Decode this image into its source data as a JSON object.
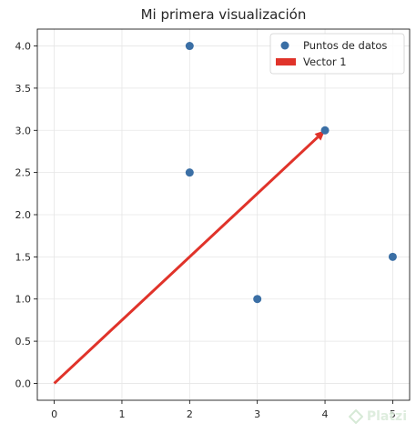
{
  "chart_data": {
    "type": "scatter",
    "title": "Mi primera visualización",
    "xlabel": "",
    "ylabel": "",
    "xlim": [
      -0.25,
      5.25
    ],
    "ylim": [
      -0.2,
      4.2
    ],
    "xticks": [
      0,
      1,
      2,
      3,
      4,
      5
    ],
    "yticks": [
      0.0,
      0.5,
      1.0,
      1.5,
      2.0,
      2.5,
      3.0,
      3.5,
      4.0
    ],
    "grid": true,
    "legend": "top-right",
    "series": [
      {
        "name": "Puntos de datos",
        "kind": "scatter",
        "color": "#3b6fa5",
        "points": [
          {
            "x": 2,
            "y": 4
          },
          {
            "x": 2,
            "y": 2.5
          },
          {
            "x": 4,
            "y": 3
          },
          {
            "x": 3,
            "y": 1
          },
          {
            "x": 5,
            "y": 1.5
          }
        ]
      },
      {
        "name": "Vector 1",
        "kind": "vector",
        "color": "#e0332a",
        "from": {
          "x": 0,
          "y": 0
        },
        "to": {
          "x": 4,
          "y": 3
        }
      }
    ]
  },
  "watermark": {
    "text": "Platzi",
    "icon": "platzi-logo-icon"
  }
}
